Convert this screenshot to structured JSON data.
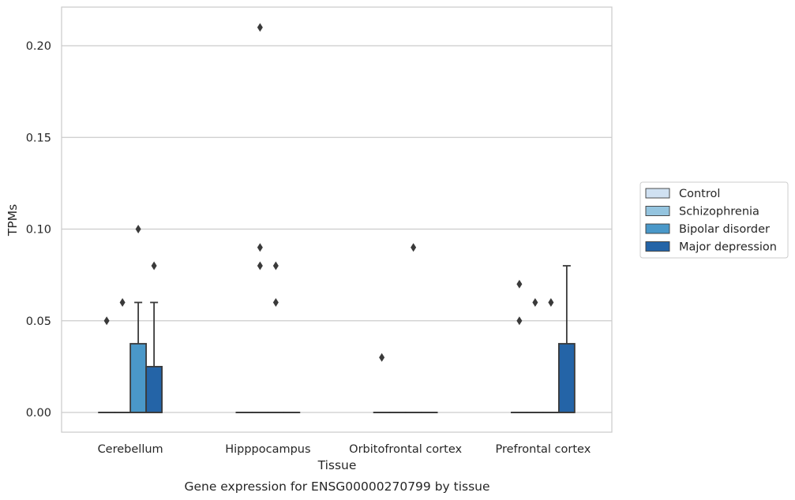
{
  "chart_data": {
    "type": "box",
    "title": "",
    "caption": "Gene expression for ENSG00000270799 by tissue",
    "xlabel": "Tissue",
    "ylabel": "TPMs",
    "ylim": [
      -0.01,
      0.22
    ],
    "yticks": [
      0.0,
      0.05,
      0.1,
      0.15,
      0.2
    ],
    "ytick_labels": [
      "0.00",
      "0.05",
      "0.10",
      "0.15",
      "0.20"
    ],
    "grid": "horizontal",
    "legend_placement": "right",
    "categories": [
      "Cerebellum",
      "Hipppocampus",
      "Orbitofrontal cortex",
      "Prefrontal cortex"
    ],
    "series": [
      {
        "name": "Control",
        "color": "#d0e1f2",
        "boxes": [
          {
            "q1": 0.0,
            "median": 0.0,
            "q3": 0.0,
            "whisker_low": 0.0,
            "whisker_high": 0.0,
            "outliers": [
              0.05
            ]
          },
          {
            "q1": 0.0,
            "median": 0.0,
            "q3": 0.0,
            "whisker_low": 0.0,
            "whisker_high": 0.0,
            "outliers": []
          },
          {
            "q1": 0.0,
            "median": 0.0,
            "q3": 0.0,
            "whisker_low": 0.0,
            "whisker_high": 0.0,
            "outliers": [
              0.03
            ]
          },
          {
            "q1": 0.0,
            "median": 0.0,
            "q3": 0.0,
            "whisker_low": 0.0,
            "whisker_high": 0.0,
            "outliers": [
              0.05,
              0.07
            ]
          }
        ]
      },
      {
        "name": "Schizophrenia",
        "color": "#94c4df",
        "boxes": [
          {
            "q1": 0.0,
            "median": 0.0,
            "q3": 0.0,
            "whisker_low": 0.0,
            "whisker_high": 0.0,
            "outliers": [
              0.06
            ]
          },
          {
            "q1": 0.0,
            "median": 0.0,
            "q3": 0.0,
            "whisker_low": 0.0,
            "whisker_high": 0.0,
            "outliers": [
              0.21,
              0.09,
              0.08
            ]
          },
          {
            "q1": 0.0,
            "median": 0.0,
            "q3": 0.0,
            "whisker_low": 0.0,
            "whisker_high": 0.0,
            "outliers": []
          },
          {
            "q1": 0.0,
            "median": 0.0,
            "q3": 0.0,
            "whisker_low": 0.0,
            "whisker_high": 0.0,
            "outliers": [
              0.06
            ]
          }
        ]
      },
      {
        "name": "Bipolar disorder",
        "color": "#4a98c9",
        "boxes": [
          {
            "q1": 0.0,
            "median": 0.0,
            "q3": 0.0375,
            "whisker_low": 0.0,
            "whisker_high": 0.06,
            "outliers": [
              0.1
            ]
          },
          {
            "q1": 0.0,
            "median": 0.0,
            "q3": 0.0,
            "whisker_low": 0.0,
            "whisker_high": 0.0,
            "outliers": [
              0.08,
              0.06
            ]
          },
          {
            "q1": 0.0,
            "median": 0.0,
            "q3": 0.0,
            "whisker_low": 0.0,
            "whisker_high": 0.0,
            "outliers": [
              0.09
            ]
          },
          {
            "q1": 0.0,
            "median": 0.0,
            "q3": 0.0,
            "whisker_low": 0.0,
            "whisker_high": 0.0,
            "outliers": [
              0.06
            ]
          }
        ]
      },
      {
        "name": "Major depression",
        "color": "#2464a7",
        "boxes": [
          {
            "q1": 0.0,
            "median": 0.0,
            "q3": 0.025,
            "whisker_low": 0.0,
            "whisker_high": 0.06,
            "outliers": [
              0.08
            ]
          },
          {
            "q1": 0.0,
            "median": 0.0,
            "q3": 0.0,
            "whisker_low": 0.0,
            "whisker_high": 0.0,
            "outliers": []
          },
          {
            "q1": 0.0,
            "median": 0.0,
            "q3": 0.0,
            "whisker_low": 0.0,
            "whisker_high": 0.0,
            "outliers": []
          },
          {
            "q1": 0.0,
            "median": 0.0,
            "q3": 0.0375,
            "whisker_low": 0.0,
            "whisker_high": 0.08,
            "outliers": []
          }
        ]
      }
    ]
  }
}
